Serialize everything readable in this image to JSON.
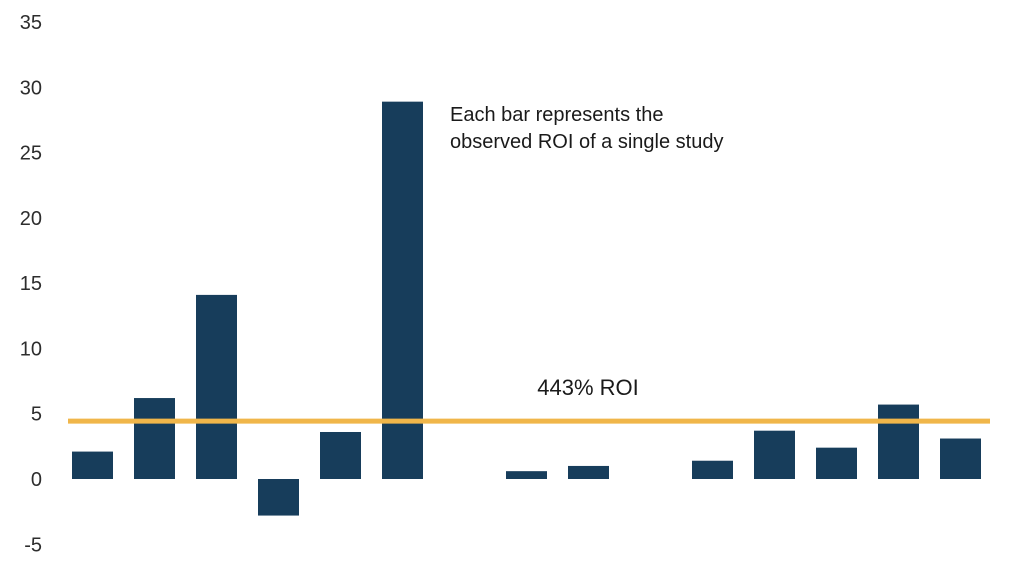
{
  "chart_data": {
    "type": "bar",
    "title": "",
    "xlabel": "",
    "ylabel": "",
    "ylim": [
      -5,
      35
    ],
    "yticks": [
      35,
      30,
      25,
      20,
      15,
      10,
      5,
      0,
      -5
    ],
    "grid": false,
    "legend": "none",
    "bar_color": "#173d5b",
    "values": [
      2.1,
      6.2,
      14.1,
      -2.8,
      3.6,
      28.9,
      null,
      0.6,
      1.0,
      null,
      1.4,
      3.7,
      2.4,
      5.7,
      3.1
    ],
    "reference_line": {
      "value": 4.43,
      "label": "443% ROI",
      "color": "#f0b64a"
    },
    "annotation": {
      "lines": [
        "Each bar represents the",
        "observed ROI of a single study"
      ]
    }
  }
}
